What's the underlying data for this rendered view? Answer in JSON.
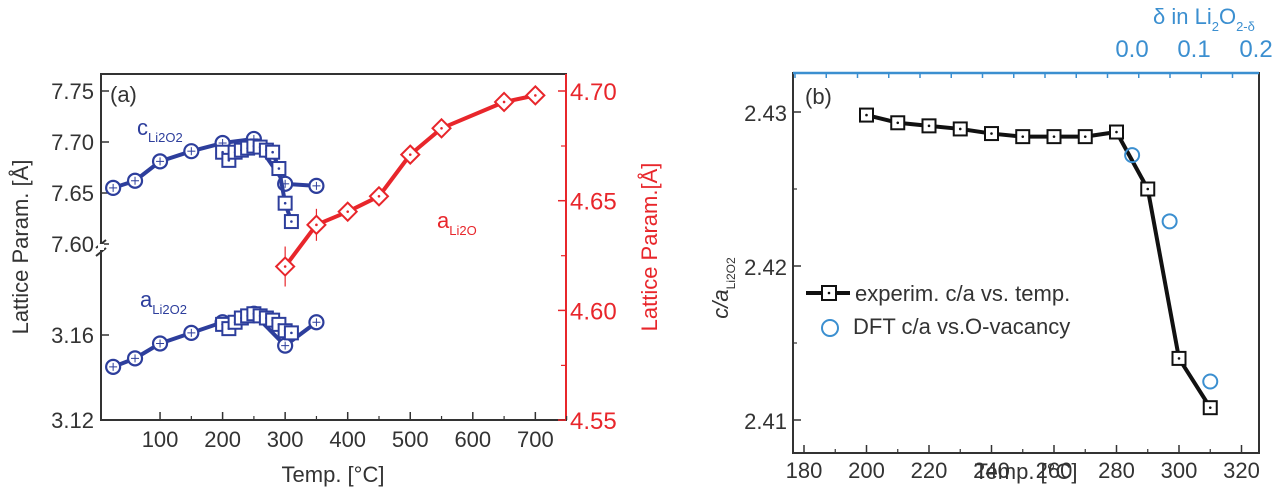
{
  "chart_data": [
    {
      "panel": "(a)",
      "type": "line",
      "xlabel": "Temp. [°C]",
      "ylabel_left": "Lattice Param. [Å]",
      "ylabel_right": "Lattice Param.[Å]",
      "x_ticks": [
        100,
        200,
        300,
        400,
        500,
        600,
        700
      ],
      "xlim": [
        8,
        750
      ],
      "y_left_ticks_upper": [
        "7.75",
        "7.70",
        "7.65",
        "7.60"
      ],
      "y_left_ticks_lower": [
        "3.16",
        "3.12"
      ],
      "y_left_upper_range": [
        7.6,
        7.75
      ],
      "y_left_lower_range": [
        3.12,
        3.18
      ],
      "y_right_ticks": [
        "4.70",
        "4.65",
        "4.60",
        "4.55"
      ],
      "ylim_right": [
        4.55,
        4.7
      ],
      "axis_break": "left axis broken between 7.60 and 3.16",
      "annotations": [
        {
          "text": "c",
          "sub": "Li2O2",
          "color": "#2d3e9c"
        },
        {
          "text": "a",
          "sub": "Li2O2",
          "color": "#2d3e9c"
        },
        {
          "text": "a",
          "sub": "Li2O",
          "color": "#e8262b"
        }
      ],
      "series": [
        {
          "name": "c_Li2O2 (circles)",
          "axis": "left-upper",
          "marker": "circle",
          "color": "#2d3e9c",
          "x": [
            25,
            60,
            100,
            150,
            200,
            250,
            300,
            350
          ],
          "y": [
            7.655,
            7.662,
            7.681,
            7.691,
            7.699,
            7.703,
            7.659,
            7.657
          ]
        },
        {
          "name": "c_Li2O2 (squares)",
          "axis": "left-upper",
          "marker": "square",
          "color": "#2d3e9c",
          "x": [
            200,
            210,
            220,
            230,
            240,
            250,
            260,
            270,
            280,
            290,
            300,
            310
          ],
          "y": [
            7.69,
            7.682,
            7.69,
            7.692,
            7.694,
            7.696,
            7.695,
            7.692,
            7.69,
            7.674,
            7.64,
            7.622
          ]
        },
        {
          "name": "a_Li2O2 (circles)",
          "axis": "left-lower",
          "marker": "circle",
          "color": "#2d3e9c",
          "x": [
            25,
            60,
            100,
            150,
            200,
            250,
            300,
            350
          ],
          "y": [
            3.145,
            3.149,
            3.156,
            3.161,
            3.166,
            3.17,
            3.155,
            3.166
          ]
        },
        {
          "name": "a_Li2O2 (squares)",
          "axis": "left-lower",
          "marker": "square",
          "color": "#2d3e9c",
          "x": [
            200,
            210,
            220,
            230,
            240,
            250,
            260,
            270,
            280,
            290,
            300,
            310
          ],
          "y": [
            3.165,
            3.163,
            3.166,
            3.168,
            3.169,
            3.17,
            3.169,
            3.168,
            3.167,
            3.165,
            3.162,
            3.161
          ]
        },
        {
          "name": "a_Li2O (diamonds)",
          "axis": "right",
          "marker": "diamond",
          "color": "#e8262b",
          "x": [
            300,
            350,
            400,
            450,
            500,
            550,
            650,
            700
          ],
          "y": [
            4.62,
            4.639,
            4.645,
            4.652,
            4.671,
            4.683,
            4.695,
            4.698
          ]
        }
      ]
    },
    {
      "panel": "(b)",
      "type": "line",
      "xlabel": "Temp. [°C]",
      "ylabel": "c/a Li2O2",
      "x_ticks": [
        180,
        200,
        220,
        240,
        260,
        280,
        300,
        320
      ],
      "xlim": [
        177,
        325
      ],
      "y_ticks": [
        "2.43",
        "2.42",
        "2.41"
      ],
      "ylim": [
        2.4105,
        2.4313
      ],
      "top_axis": {
        "label": "δ in Li2O2-δ",
        "ticks": [
          "0.0",
          "0.1",
          "0.2"
        ],
        "color": "#3b8fd0"
      },
      "legend": [
        {
          "label": "experim. c/a vs. temp.",
          "marker": "square-line",
          "color": "#111111"
        },
        {
          "label": "DFT c/a vs.O-vacancy",
          "marker": "open-circle",
          "color": "#3b8fd0"
        }
      ],
      "series": [
        {
          "name": "experim. c/a vs. temp.",
          "marker": "square",
          "color": "#111111",
          "x": [
            200,
            210,
            220,
            230,
            240,
            250,
            260,
            270,
            280,
            290,
            300,
            310
          ],
          "y": [
            2.4298,
            2.4293,
            2.4291,
            2.4289,
            2.4286,
            2.4284,
            2.4284,
            2.4284,
            2.4287,
            2.425,
            2.414,
            2.4108
          ]
        },
        {
          "name": "DFT c/a vs.O-vacancy",
          "marker": "open-circle",
          "color": "#3b8fd0",
          "x": [
            285,
            297,
            310
          ],
          "y": [
            2.4272,
            2.4229,
            2.4125
          ]
        }
      ]
    }
  ],
  "labels": {
    "panel_a": "(a)",
    "panel_b": "(b)",
    "xlabel_a": "Temp. [°C]",
    "xlabel_b": "Temp. [°C]",
    "ylabel_a_left": "Lattice Param. [Å]",
    "ylabel_a_right": "Lattice Param.[Å]",
    "ylabel_b_main": "c/a",
    "ylabel_b_sub": "Li2O2",
    "c_li2o2_main": "c",
    "c_li2o2_sub": "Li2O2",
    "a_li2o2_main": "a",
    "a_li2o2_sub": "Li2O2",
    "a_li2o_main": "a",
    "a_li2o_sub": "Li2O",
    "top_axis_delta": "δ in Li",
    "top_axis_sub2": "2",
    "top_axis_O": "O",
    "top_axis_sub_delta": "2-δ",
    "legend_exp": "experim. c/a vs. temp.",
    "legend_dft": "DFT c/a vs.O-vacancy"
  },
  "colors": {
    "blue": "#2d3e9c",
    "red": "#e8262b",
    "black": "#111111",
    "light_blue": "#3b8fd0",
    "axis": "#333333"
  }
}
